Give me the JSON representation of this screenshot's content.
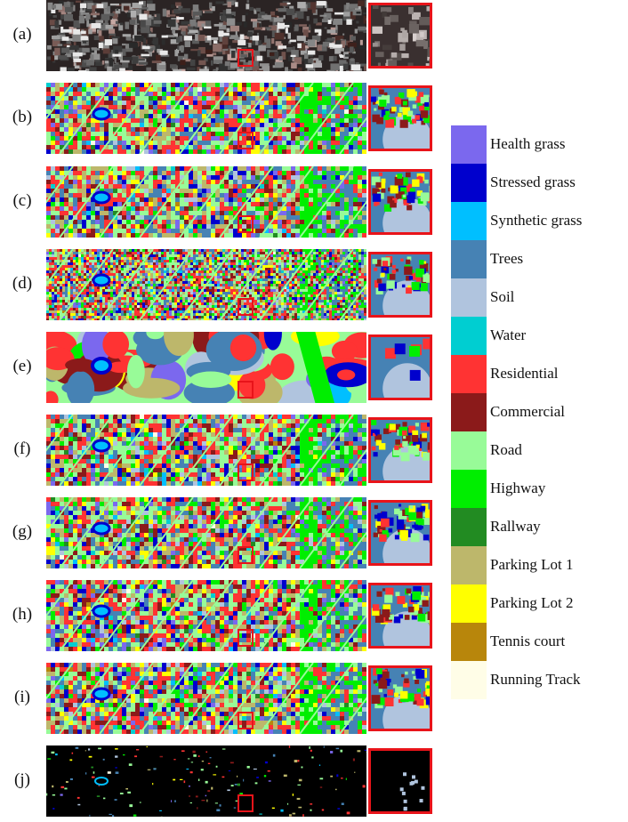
{
  "rows": [
    {
      "label": "(a)",
      "kind": "rgb"
    },
    {
      "label": "(b)",
      "kind": "map"
    },
    {
      "label": "(c)",
      "kind": "map"
    },
    {
      "label": "(d)",
      "kind": "map"
    },
    {
      "label": "(e)",
      "kind": "smooth"
    },
    {
      "label": "(f)",
      "kind": "map"
    },
    {
      "label": "(g)",
      "kind": "map"
    },
    {
      "label": "(h)",
      "kind": "map"
    },
    {
      "label": "(i)",
      "kind": "map"
    },
    {
      "label": "(j)",
      "kind": "gt"
    }
  ],
  "legend": [
    {
      "label": "Health grass",
      "color": "#7b68ee"
    },
    {
      "label": "Stressed grass",
      "color": "#0000cd"
    },
    {
      "label": "Synthetic grass",
      "color": "#00bfff"
    },
    {
      "label": "Trees",
      "color": "#4682b4"
    },
    {
      "label": "Soil",
      "color": "#b0c4de"
    },
    {
      "label": "Water",
      "color": "#00ced1"
    },
    {
      "label": "Residential",
      "color": "#ff3333"
    },
    {
      "label": "Commercial",
      "color": "#8b1a1a"
    },
    {
      "label": "Road",
      "color": "#98fb98"
    },
    {
      "label": "Highway",
      "color": "#00ee00"
    },
    {
      "label": "Rallway",
      "color": "#228b22"
    },
    {
      "label": "Parking Lot 1",
      "color": "#bdb76b"
    },
    {
      "label": "Parking Lot 2",
      "color": "#ffff00"
    },
    {
      "label": "Tennis court",
      "color": "#b8860b"
    },
    {
      "label": "Running Track",
      "color": "#fffde7"
    }
  ]
}
